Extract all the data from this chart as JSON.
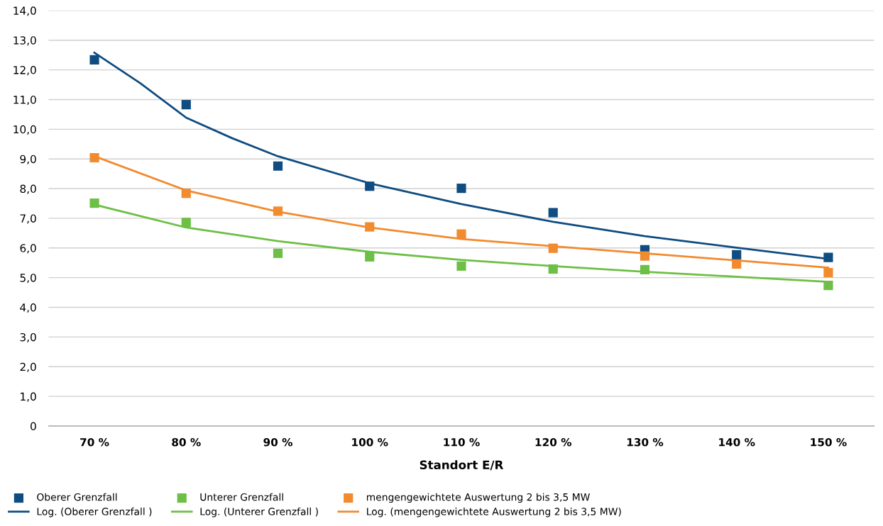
{
  "chart_data": {
    "type": "scatter",
    "xlabel": "Standort E/R",
    "x": [
      70,
      80,
      90,
      100,
      110,
      120,
      130,
      140,
      150
    ],
    "xlim": [
      65,
      155
    ],
    "xticks": [
      {
        "value": 70,
        "label": "70 %"
      },
      {
        "value": 80,
        "label": "80 %"
      },
      {
        "value": 90,
        "label": "90 %"
      },
      {
        "value": 100,
        "label": "100 %"
      },
      {
        "value": 110,
        "label": "110 %"
      },
      {
        "value": 120,
        "label": "120 %"
      },
      {
        "value": 130,
        "label": "130 %"
      },
      {
        "value": 140,
        "label": "140 %"
      },
      {
        "value": 150,
        "label": "150 %"
      }
    ],
    "ylim": [
      0,
      14
    ],
    "yticks": [
      {
        "value": 0,
        "label": "0"
      },
      {
        "value": 1,
        "label": "1,0"
      },
      {
        "value": 2,
        "label": "2,0"
      },
      {
        "value": 3,
        "label": "3,0"
      },
      {
        "value": 4,
        "label": "4,0"
      },
      {
        "value": 5,
        "label": "5,0"
      },
      {
        "value": 6,
        "label": "6,0"
      },
      {
        "value": 7,
        "label": "7,0"
      },
      {
        "value": 8,
        "label": "8,0"
      },
      {
        "value": 9,
        "label": "9,0"
      },
      {
        "value": 10,
        "label": "10,0"
      },
      {
        "value": 11,
        "label": "11,0"
      },
      {
        "value": 12,
        "label": "12,0"
      },
      {
        "value": 13,
        "label": "13,0"
      },
      {
        "value": 14,
        "label": "14,0"
      }
    ],
    "grid": "y",
    "legend": "bottom",
    "marker": "square",
    "series": [
      {
        "name": "Oberer Grenzfall",
        "type": "scatter",
        "color": "#0f4c81",
        "values": [
          12.34,
          10.83,
          8.76,
          8.08,
          8.01,
          7.19,
          5.94,
          5.77,
          5.68
        ]
      },
      {
        "name": "Unterer Grenzfall",
        "type": "scatter",
        "color": "#6dbf45",
        "values": [
          7.51,
          6.86,
          5.82,
          5.7,
          5.39,
          5.29,
          5.27,
          null,
          4.74
        ]
      },
      {
        "name": "mengengewichtete Auswertung 2 bis 3,5 MW",
        "type": "scatter",
        "color": "#f28a2e",
        "values": [
          9.04,
          7.84,
          7.24,
          6.71,
          6.47,
          5.99,
          5.73,
          5.46,
          5.17
        ]
      },
      {
        "name": "Log. (Oberer Grenzfall )",
        "type": "line",
        "marker": "none",
        "line_style": "solid",
        "color": "#0f4c81",
        "x": [
          70,
          75,
          80,
          85,
          90,
          100,
          110,
          120,
          130,
          140,
          150
        ],
        "values": [
          12.58,
          11.55,
          10.39,
          9.7,
          9.09,
          8.18,
          7.48,
          6.88,
          6.4,
          6.01,
          5.63
        ]
      },
      {
        "name": "Log. (Unterer Grenzfall )",
        "type": "line",
        "marker": "none",
        "line_style": "solid",
        "color": "#6dbf45",
        "x": [
          70,
          80,
          90,
          100,
          110,
          120,
          130,
          140,
          150
        ],
        "values": [
          7.46,
          6.69,
          6.23,
          5.87,
          5.6,
          5.39,
          5.2,
          5.03,
          4.86
        ]
      },
      {
        "name": "Log. (mengengewichtete Auswertung 2 bis 3,5 MW)",
        "type": "line",
        "marker": "none",
        "line_style": "solid",
        "color": "#f28a2e",
        "x": [
          70,
          80,
          90,
          100,
          110,
          120,
          130,
          140,
          150
        ],
        "values": [
          9.09,
          7.94,
          7.22,
          6.69,
          6.3,
          6.06,
          5.82,
          5.58,
          5.34
        ]
      }
    ]
  }
}
